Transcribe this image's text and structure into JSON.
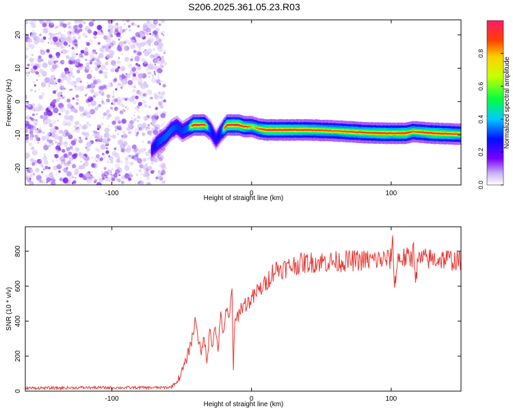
{
  "title": "S206.2025.361.05.23.R03",
  "colors": {
    "snr_line": "#e8302c",
    "frame": "#000000",
    "scatter": "#8a2be2"
  },
  "chart_data": [
    {
      "type": "heatmap",
      "panel": "top",
      "xlabel": "Height of straight line (km)",
      "ylabel": "Frequency (Hz)",
      "xlim": [
        -162,
        150
      ],
      "ylim": [
        -25,
        24.5
      ],
      "xticks": [
        -100,
        0,
        100
      ],
      "yticks": [
        -20,
        -10,
        0,
        10,
        20
      ],
      "xtick_labels": [
        "-100",
        "0",
        "100"
      ],
      "ytick_labels": [
        "-20",
        "-10",
        "0",
        "10",
        "20"
      ],
      "noise_region_x": [
        -162,
        -62
      ],
      "ridge": {
        "x": [
          -72,
          -68,
          -62,
          -58,
          -54,
          -50,
          -46,
          -42,
          -38,
          -34,
          -30,
          -26,
          -22,
          -20,
          -18,
          -14,
          -10,
          -6,
          -2,
          0,
          5,
          10,
          20,
          40,
          60,
          80,
          95,
          100,
          110,
          115,
          130,
          150
        ],
        "freq": [
          -14.5,
          -12.5,
          -10.5,
          -8.5,
          -7.5,
          -9.0,
          -8.0,
          -7.0,
          -7.0,
          -7.0,
          -8.5,
          -11.5,
          -9.0,
          -8.0,
          -7.0,
          -7.0,
          -7.0,
          -7.5,
          -7.5,
          -7.5,
          -8.2,
          -8.5,
          -8.5,
          -8.5,
          -8.8,
          -9.3,
          -9.5,
          -9.5,
          -9.5,
          -9.0,
          -9.5,
          -9.8
        ],
        "amplitude": [
          0.4,
          0.55,
          0.6,
          0.6,
          0.55,
          0.55,
          0.6,
          1.0,
          1.0,
          0.9,
          0.55,
          0.45,
          0.55,
          0.85,
          0.95,
          1.0,
          1.0,
          0.9,
          0.85,
          0.8,
          0.85,
          0.95,
          0.95,
          0.9,
          0.85,
          0.9,
          0.95,
          0.9,
          0.95,
          0.85,
          0.95,
          0.85
        ]
      },
      "colorbar": {
        "label": "Normalized spectral amplitude",
        "range": [
          0.0,
          1.0
        ],
        "ticks": [
          0.0,
          0.2,
          0.4,
          0.6,
          0.8
        ],
        "tick_labels": [
          "0.0",
          "0.2",
          "0.4",
          "0.6",
          "0.8"
        ]
      }
    },
    {
      "type": "line",
      "panel": "bottom",
      "xlabel": "Height of straight line (km)",
      "ylabel": "SNR (10 * v/v)",
      "xlim": [
        -162,
        150
      ],
      "ylim": [
        0,
        940
      ],
      "xticks": [
        -100,
        0,
        100
      ],
      "yticks": [
        0,
        200,
        400,
        600,
        800
      ],
      "xtick_labels": [
        "-100",
        "0",
        "100"
      ],
      "ytick_labels": [
        "0",
        "200",
        "400",
        "600",
        "800"
      ],
      "series": [
        {
          "name": "SNR",
          "x": [
            -162,
            -140,
            -120,
            -100,
            -80,
            -65,
            -58,
            -53,
            -50,
            -47,
            -44,
            -42,
            -40,
            -38,
            -36,
            -34,
            -32,
            -30,
            -28,
            -26,
            -24,
            -22,
            -20,
            -18,
            -16,
            -14,
            -13,
            -12,
            -10,
            -8,
            -6,
            -4,
            -2,
            0,
            2,
            4,
            6,
            8,
            10,
            12,
            15,
            18,
            20,
            25,
            30,
            35,
            40,
            50,
            60,
            70,
            80,
            90,
            95,
            100,
            101,
            102,
            105,
            110,
            115,
            116,
            117,
            120,
            130,
            140,
            150
          ],
          "values": [
            18,
            18,
            20,
            20,
            20,
            20,
            22,
            55,
            110,
            170,
            260,
            320,
            420,
            300,
            200,
            330,
            150,
            380,
            260,
            360,
            250,
            420,
            340,
            460,
            400,
            600,
            120,
            380,
            430,
            470,
            490,
            500,
            510,
            530,
            540,
            570,
            580,
            600,
            610,
            640,
            680,
            700,
            700,
            705,
            720,
            730,
            735,
            740,
            740,
            745,
            748,
            750,
            752,
            755,
            930,
            600,
            760,
            760,
            760,
            900,
            650,
            755,
            755,
            755,
            740
          ]
        }
      ]
    }
  ]
}
